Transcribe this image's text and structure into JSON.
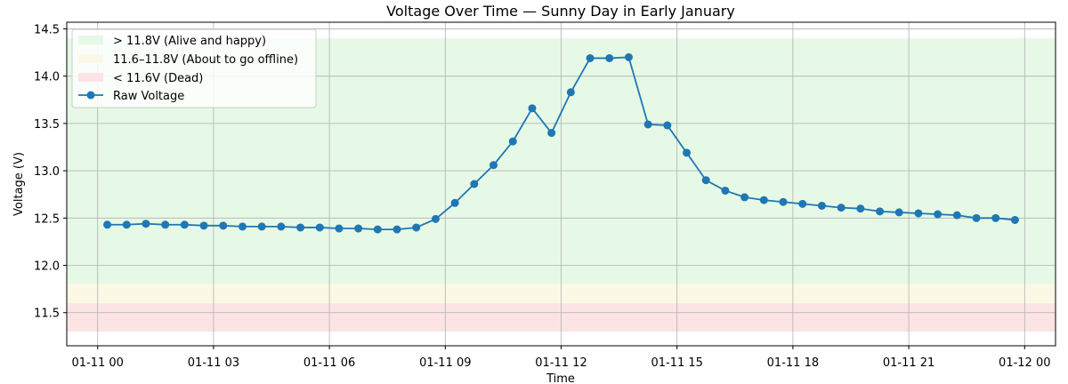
{
  "chart_data": {
    "type": "line",
    "title": "Voltage Over Time — Sunny Day in Early January",
    "xlabel": "Time",
    "ylabel": "Voltage (V)",
    "xlim": [
      "2025-01-10T23:12",
      "2025-01-12T00:48"
    ],
    "ylim": [
      11.15,
      14.57
    ],
    "grid": true,
    "legend_position": "top-left",
    "x_ticks": [
      "01-11 00",
      "01-11 03",
      "01-11 06",
      "01-11 09",
      "01-11 12",
      "01-11 15",
      "01-11 18",
      "01-11 21",
      "01-12 00"
    ],
    "x_tick_times": [
      "2025-01-11T00:00",
      "2025-01-11T03:00",
      "2025-01-11T06:00",
      "2025-01-11T09:00",
      "2025-01-11T12:00",
      "2025-01-11T15:00",
      "2025-01-11T18:00",
      "2025-01-11T21:00",
      "2025-01-12T00:00"
    ],
    "y_ticks": [
      11.5,
      12.0,
      12.5,
      13.0,
      13.5,
      14.0,
      14.5
    ],
    "bands": [
      {
        "label": "> 11.8V (Alive and happy)",
        "y0": 11.8,
        "y1": 14.4,
        "color": "#e6f9e6"
      },
      {
        "label": "11.6–11.8V (About to go offline)",
        "y0": 11.6,
        "y1": 11.8,
        "color": "#fbf9e6"
      },
      {
        "label": "< 11.6V (Dead)",
        "y0": 11.3,
        "y1": 11.6,
        "color": "#fce4e4"
      }
    ],
    "series": [
      {
        "name": "Raw Voltage",
        "color": "#1f77b4",
        "x": [
          "2025-01-11T00:15",
          "2025-01-11T00:45",
          "2025-01-11T01:15",
          "2025-01-11T01:45",
          "2025-01-11T02:15",
          "2025-01-11T02:45",
          "2025-01-11T03:15",
          "2025-01-11T03:45",
          "2025-01-11T04:15",
          "2025-01-11T04:45",
          "2025-01-11T05:15",
          "2025-01-11T05:45",
          "2025-01-11T06:15",
          "2025-01-11T06:45",
          "2025-01-11T07:15",
          "2025-01-11T07:45",
          "2025-01-11T08:15",
          "2025-01-11T08:45",
          "2025-01-11T09:15",
          "2025-01-11T09:45",
          "2025-01-11T10:15",
          "2025-01-11T10:45",
          "2025-01-11T11:15",
          "2025-01-11T11:45",
          "2025-01-11T12:15",
          "2025-01-11T12:45",
          "2025-01-11T13:15",
          "2025-01-11T13:45",
          "2025-01-11T14:15",
          "2025-01-11T14:45",
          "2025-01-11T15:15",
          "2025-01-11T15:45",
          "2025-01-11T16:15",
          "2025-01-11T16:45",
          "2025-01-11T17:15",
          "2025-01-11T17:45",
          "2025-01-11T18:15",
          "2025-01-11T18:45",
          "2025-01-11T19:15",
          "2025-01-11T19:45",
          "2025-01-11T20:15",
          "2025-01-11T20:45",
          "2025-01-11T21:15",
          "2025-01-11T21:45",
          "2025-01-11T22:15",
          "2025-01-11T22:45",
          "2025-01-11T23:15",
          "2025-01-11T23:45"
        ],
        "values": [
          12.43,
          12.43,
          12.44,
          12.43,
          12.43,
          12.42,
          12.42,
          12.41,
          12.41,
          12.41,
          12.4,
          12.4,
          12.39,
          12.39,
          12.38,
          12.38,
          12.4,
          12.49,
          12.66,
          12.86,
          13.06,
          13.31,
          13.66,
          13.4,
          13.83,
          14.19,
          14.19,
          14.2,
          13.49,
          13.48,
          13.19,
          12.9,
          12.79,
          12.72,
          12.69,
          12.67,
          12.65,
          12.63,
          12.61,
          12.6,
          12.57,
          12.56,
          12.55,
          12.54,
          12.53,
          12.5,
          12.5,
          12.48
        ]
      }
    ]
  }
}
